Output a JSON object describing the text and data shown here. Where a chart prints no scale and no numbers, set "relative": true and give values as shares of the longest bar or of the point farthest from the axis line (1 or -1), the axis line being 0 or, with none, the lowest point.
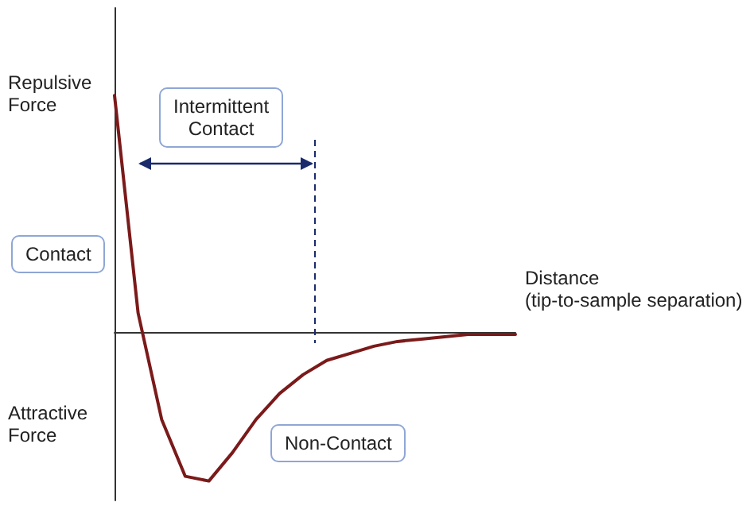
{
  "chart_data": {
    "type": "line",
    "relative": true,
    "xlabel": "Distance\n(tip-to-sample separation)",
    "categories": [
      null,
      null,
      null,
      null,
      null,
      null,
      null,
      null,
      null,
      null,
      null,
      null,
      null,
      null,
      null,
      null,
      null,
      null
    ],
    "grid": false,
    "marker": "none",
    "line_style": "solid",
    "series": [
      {
        "color": "#7b1a1a",
        "values": [
          1,
          0.08,
          -0.37,
          -0.61,
          -0.63,
          -0.51,
          -0.37,
          -0.26,
          -0.18,
          -0.12,
          -0.09,
          -0.06,
          -0.04,
          -0.03,
          -0.02,
          -0.01,
          -0.01,
          -0.01
        ]
      }
    ],
    "annotations": [
      "Repulsive\nForce",
      "Attractive\nForce",
      "Intermittent\nContact",
      "Contact",
      "Non-Contact"
    ]
  }
}
